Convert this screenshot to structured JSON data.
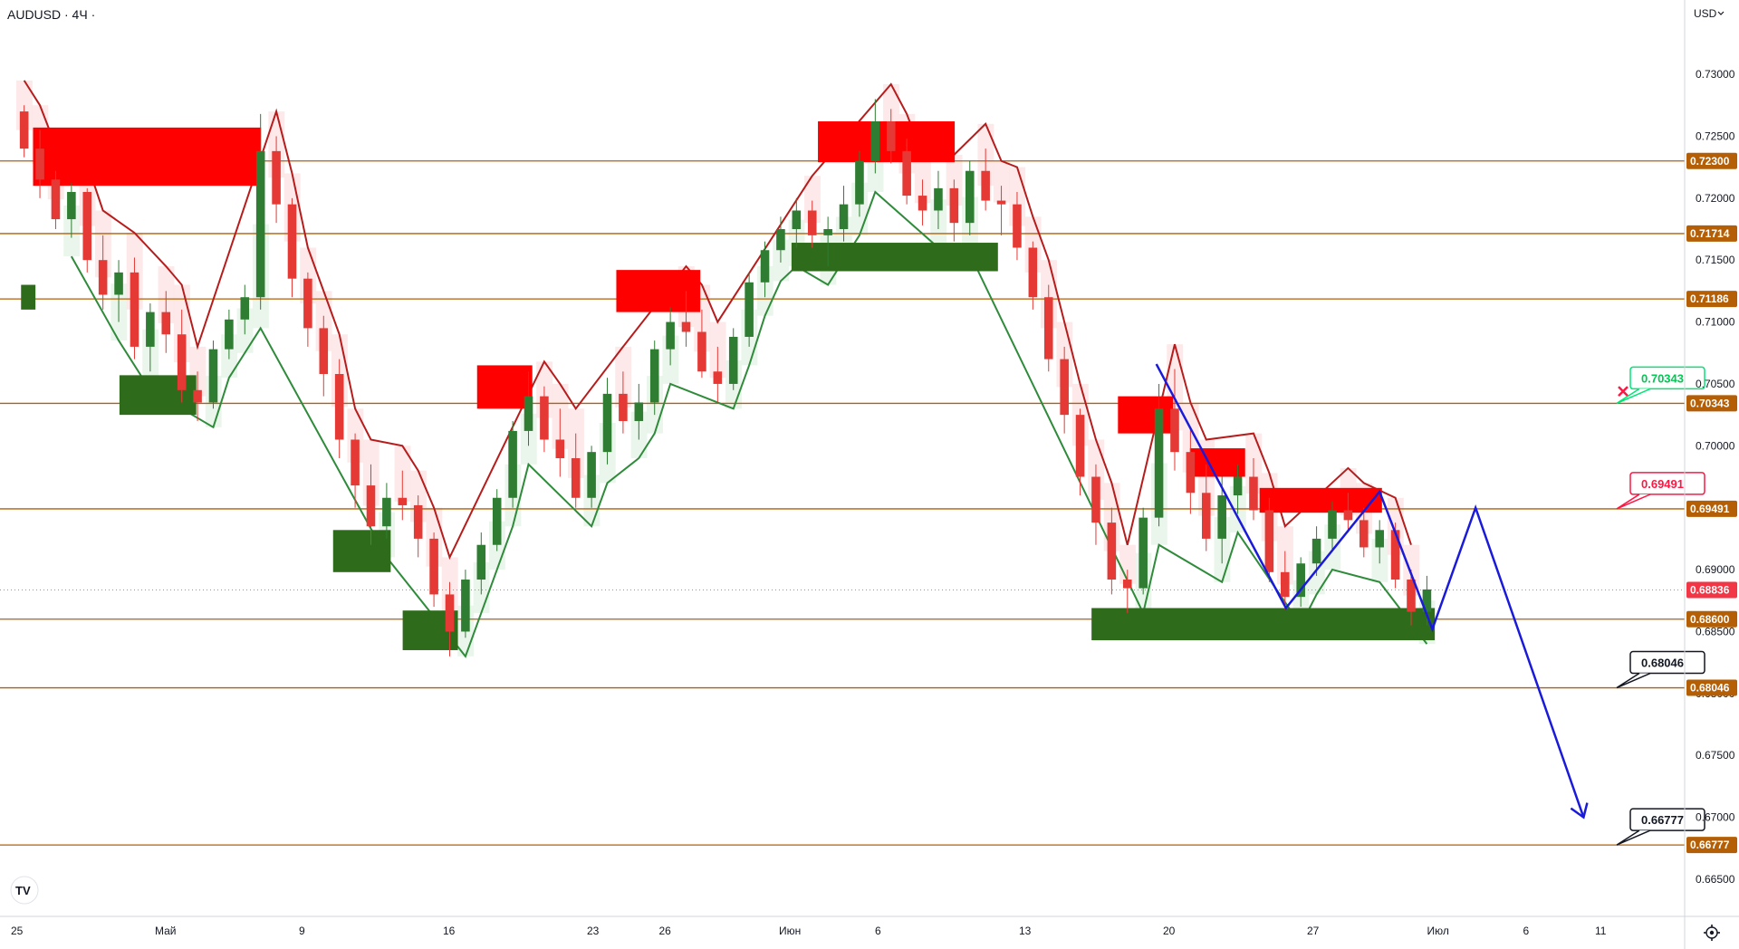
{
  "header": {
    "symbol_label": "AUDUSD · 4Ч ·",
    "currency_label": "USD"
  },
  "colors": {
    "level_line": "#b45f06",
    "bull": "#2e7d32",
    "bear": "#e53935",
    "supply_zone": "#ff0000",
    "demand_zone": "#2e6b1a",
    "forecast": "#1a1adb",
    "trail_red": "#b71c1c",
    "trail_green": "#2e8b3a"
  },
  "chart_data": {
    "type": "candlestick",
    "symbol": "AUDUSD",
    "timeframe": "4Ч",
    "ylim": [
      0.662,
      0.736
    ],
    "y_ticks": [
      "0.73000",
      "0.72500",
      "0.72000",
      "0.71500",
      "0.71000",
      "0.70500",
      "0.70000",
      "0.69500",
      "0.69000",
      "0.68500",
      "0.68000",
      "0.67500",
      "0.67000",
      "0.66500"
    ],
    "x_ticks": [
      {
        "label": "25",
        "pos": 0
      },
      {
        "label": "Май",
        "pos": 6
      },
      {
        "label": "9",
        "pos": 12
      },
      {
        "label": "16",
        "pos": 18
      },
      {
        "label": "23",
        "pos": 24
      },
      {
        "label": "26",
        "pos": 27
      },
      {
        "label": "Июн",
        "pos": 32
      },
      {
        "label": "6",
        "pos": 36
      },
      {
        "label": "13",
        "pos": 42
      },
      {
        "label": "20",
        "pos": 48
      },
      {
        "label": "27",
        "pos": 54
      },
      {
        "label": "Июл",
        "pos": 59
      },
      {
        "label": "6",
        "pos": 63
      },
      {
        "label": "11",
        "pos": 66
      }
    ],
    "levels": [
      {
        "label": "0.72300",
        "value": 0.723
      },
      {
        "label": "0.71714",
        "value": 0.71714
      },
      {
        "label": "0.71186",
        "value": 0.71186
      },
      {
        "label": "0.70343",
        "value": 0.70343
      },
      {
        "label": "0.69491",
        "value": 0.69491
      },
      {
        "label": "0.68600",
        "value": 0.686
      },
      {
        "label": "0.68046",
        "value": 0.68046
      },
      {
        "label": "0.66777",
        "value": 0.66777
      }
    ],
    "current_price": {
      "label": "0.68836",
      "value": 0.68836
    },
    "callouts": [
      {
        "label": "0.70343",
        "value": 0.70343,
        "color": "#00e676",
        "text_color": "#00c853"
      },
      {
        "label": "0.69491",
        "value": 0.69491,
        "color": "#ff1744",
        "text_color": "#ff1744"
      },
      {
        "label": "0.68046",
        "value": 0.68046,
        "color": "#131722",
        "text_color": "#131722"
      },
      {
        "label": "0.66777",
        "value": 0.66777,
        "color": "#131722",
        "text_color": "#131722"
      }
    ],
    "supply_zones": [
      {
        "x0": 1,
        "x1": 10.5,
        "y0": 0.721,
        "y1": 0.7257
      },
      {
        "x0": 19.5,
        "x1": 21.8,
        "y0": 0.703,
        "y1": 0.7065
      },
      {
        "x0": 25.3,
        "x1": 28.8,
        "y0": 0.7108,
        "y1": 0.7142
      },
      {
        "x0": 33.7,
        "x1": 39.4,
        "y0": 0.7229,
        "y1": 0.7262
      },
      {
        "x0": 46.2,
        "x1": 48.5,
        "y0": 0.701,
        "y1": 0.704
      },
      {
        "x0": 49.2,
        "x1": 51.5,
        "y0": 0.6975,
        "y1": 0.6998
      },
      {
        "x0": 52.1,
        "x1": 57.2,
        "y0": 0.6946,
        "y1": 0.6966
      }
    ],
    "demand_zones": [
      {
        "x0": 0.5,
        "x1": 1.1,
        "y0": 0.711,
        "y1": 0.713
      },
      {
        "x0": 4.6,
        "x1": 7.8,
        "y0": 0.7025,
        "y1": 0.7057
      },
      {
        "x0": 13.5,
        "x1": 15.9,
        "y0": 0.6898,
        "y1": 0.6932
      },
      {
        "x0": 16.4,
        "x1": 18.7,
        "y0": 0.6835,
        "y1": 0.6867
      },
      {
        "x0": 32.6,
        "x1": 41.2,
        "y0": 0.7141,
        "y1": 0.7164
      },
      {
        "x0": 45.1,
        "x1": 59.4,
        "y0": 0.6843,
        "y1": 0.6869
      }
    ],
    "forecast_path": [
      [
        47.8,
        0.7066
      ],
      [
        53.2,
        0.6869
      ],
      [
        57.1,
        0.6963
      ],
      [
        59.3,
        0.6852
      ],
      [
        61.1,
        0.695
      ],
      [
        65.6,
        0.67
      ]
    ],
    "candles": [
      [
        0.727,
        0.7275,
        0.7233,
        0.724
      ],
      [
        0.724,
        0.7255,
        0.72,
        0.7215
      ],
      [
        0.7215,
        0.7222,
        0.7175,
        0.7183
      ],
      [
        0.7183,
        0.7212,
        0.7168,
        0.7205
      ],
      [
        0.7205,
        0.7208,
        0.714,
        0.715
      ],
      [
        0.715,
        0.717,
        0.711,
        0.7122
      ],
      [
        0.7122,
        0.715,
        0.71,
        0.714
      ],
      [
        0.714,
        0.7152,
        0.707,
        0.708
      ],
      [
        0.708,
        0.7115,
        0.706,
        0.7108
      ],
      [
        0.7108,
        0.7125,
        0.7075,
        0.709
      ],
      [
        0.709,
        0.711,
        0.7035,
        0.7045
      ],
      [
        0.7045,
        0.706,
        0.702,
        0.7035
      ],
      [
        0.7035,
        0.7085,
        0.703,
        0.7078
      ],
      [
        0.7078,
        0.711,
        0.707,
        0.7102
      ],
      [
        0.7102,
        0.713,
        0.709,
        0.712
      ],
      [
        0.712,
        0.7268,
        0.711,
        0.7238
      ],
      [
        0.7238,
        0.725,
        0.718,
        0.7195
      ],
      [
        0.7195,
        0.72,
        0.712,
        0.7135
      ],
      [
        0.7135,
        0.714,
        0.708,
        0.7095
      ],
      [
        0.7095,
        0.7105,
        0.704,
        0.7058
      ],
      [
        0.7058,
        0.707,
        0.699,
        0.7005
      ],
      [
        0.7005,
        0.701,
        0.695,
        0.6968
      ],
      [
        0.6968,
        0.6985,
        0.692,
        0.6935
      ],
      [
        0.6935,
        0.697,
        0.6925,
        0.6958
      ],
      [
        0.6958,
        0.698,
        0.694,
        0.6952
      ],
      [
        0.6952,
        0.696,
        0.691,
        0.6925
      ],
      [
        0.6925,
        0.693,
        0.687,
        0.688
      ],
      [
        0.688,
        0.689,
        0.683,
        0.685
      ],
      [
        0.685,
        0.69,
        0.6845,
        0.6892
      ],
      [
        0.6892,
        0.693,
        0.688,
        0.692
      ],
      [
        0.692,
        0.6965,
        0.6915,
        0.6958
      ],
      [
        0.6958,
        0.702,
        0.695,
        0.7012
      ],
      [
        0.7012,
        0.706,
        0.7,
        0.704
      ],
      [
        0.704,
        0.7048,
        0.6995,
        0.7005
      ],
      [
        0.7005,
        0.703,
        0.6975,
        0.699
      ],
      [
        0.699,
        0.701,
        0.695,
        0.6958
      ],
      [
        0.6958,
        0.7,
        0.695,
        0.6995
      ],
      [
        0.6995,
        0.7055,
        0.6985,
        0.7042
      ],
      [
        0.7042,
        0.706,
        0.701,
        0.702
      ],
      [
        0.702,
        0.705,
        0.7005,
        0.7035
      ],
      [
        0.7035,
        0.7085,
        0.7025,
        0.7078
      ],
      [
        0.7078,
        0.7112,
        0.7065,
        0.71
      ],
      [
        0.71,
        0.7125,
        0.708,
        0.7092
      ],
      [
        0.7092,
        0.711,
        0.7055,
        0.706
      ],
      [
        0.706,
        0.708,
        0.7035,
        0.705
      ],
      [
        0.705,
        0.7095,
        0.7045,
        0.7088
      ],
      [
        0.7088,
        0.714,
        0.708,
        0.7132
      ],
      [
        0.7132,
        0.7165,
        0.712,
        0.7158
      ],
      [
        0.7158,
        0.7185,
        0.7148,
        0.7175
      ],
      [
        0.7175,
        0.72,
        0.716,
        0.719
      ],
      [
        0.719,
        0.7198,
        0.716,
        0.717
      ],
      [
        0.717,
        0.7185,
        0.7145,
        0.7175
      ],
      [
        0.7175,
        0.721,
        0.7165,
        0.7195
      ],
      [
        0.7195,
        0.7238,
        0.7185,
        0.723
      ],
      [
        0.723,
        0.728,
        0.722,
        0.7262
      ],
      [
        0.7262,
        0.7272,
        0.7228,
        0.7238
      ],
      [
        0.7238,
        0.7248,
        0.7195,
        0.7202
      ],
      [
        0.7202,
        0.7215,
        0.7178,
        0.719
      ],
      [
        0.719,
        0.7222,
        0.7175,
        0.7208
      ],
      [
        0.7208,
        0.7215,
        0.7165,
        0.718
      ],
      [
        0.718,
        0.723,
        0.717,
        0.7222
      ],
      [
        0.7222,
        0.724,
        0.719,
        0.7198
      ],
      [
        0.7198,
        0.721,
        0.717,
        0.7195
      ],
      [
        0.7195,
        0.7205,
        0.715,
        0.716
      ],
      [
        0.716,
        0.7165,
        0.711,
        0.712
      ],
      [
        0.712,
        0.713,
        0.706,
        0.707
      ],
      [
        0.707,
        0.708,
        0.701,
        0.7025
      ],
      [
        0.7025,
        0.703,
        0.696,
        0.6975
      ],
      [
        0.6975,
        0.6985,
        0.692,
        0.6938
      ],
      [
        0.6938,
        0.695,
        0.688,
        0.6892
      ],
      [
        0.6892,
        0.69,
        0.6865,
        0.6885
      ],
      [
        0.6885,
        0.695,
        0.688,
        0.6942
      ],
      [
        0.6942,
        0.705,
        0.6935,
        0.703
      ],
      [
        0.703,
        0.7062,
        0.698,
        0.6995
      ],
      [
        0.6995,
        0.7015,
        0.6945,
        0.6962
      ],
      [
        0.6962,
        0.6985,
        0.6915,
        0.6925
      ],
      [
        0.6925,
        0.6975,
        0.6905,
        0.696
      ],
      [
        0.696,
        0.6985,
        0.6945,
        0.6975
      ],
      [
        0.6975,
        0.699,
        0.694,
        0.6948
      ],
      [
        0.6948,
        0.6958,
        0.689,
        0.6898
      ],
      [
        0.6898,
        0.6915,
        0.6868,
        0.6878
      ],
      [
        0.6878,
        0.691,
        0.687,
        0.6905
      ],
      [
        0.6905,
        0.6935,
        0.6895,
        0.6925
      ],
      [
        0.6925,
        0.6955,
        0.6915,
        0.6948
      ],
      [
        0.6948,
        0.6962,
        0.693,
        0.694
      ],
      [
        0.694,
        0.695,
        0.691,
        0.6918
      ],
      [
        0.6918,
        0.694,
        0.6905,
        0.6932
      ],
      [
        0.6932,
        0.6938,
        0.6885,
        0.6892
      ],
      [
        0.6892,
        0.69,
        0.6855,
        0.6866
      ],
      [
        0.6866,
        0.6895,
        0.6855,
        0.6884
      ]
    ]
  }
}
